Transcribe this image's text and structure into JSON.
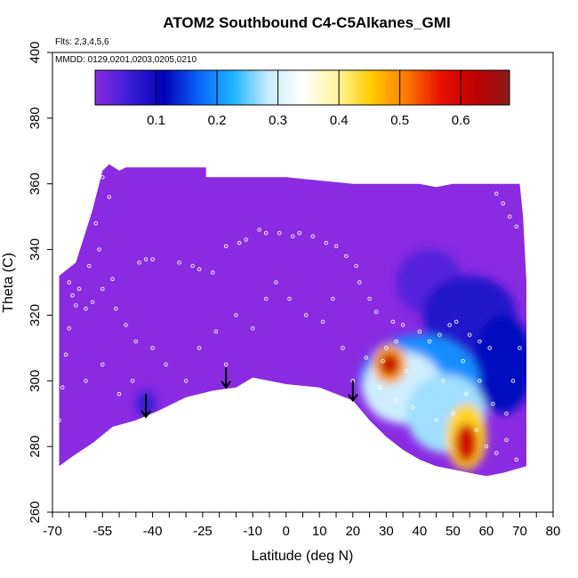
{
  "chart_data": {
    "type": "heatmap",
    "title": "ATOM2 Southbound C4-C5Alkanes_GMI",
    "subtitle_flights": "Flts: 2,3,4,5,6",
    "subtitle_dates": "MMDD: 0129,0201,0203,0205,0210",
    "xlabel": "Latitude (deg N)",
    "ylabel": "Theta (C)",
    "xlim": [
      -70,
      80
    ],
    "ylim": [
      260,
      400
    ],
    "x_ticks": [
      -70,
      -55,
      -40,
      -25,
      -10,
      0,
      10,
      20,
      30,
      40,
      50,
      60,
      70,
      80
    ],
    "x_minor_ticks": [
      -65,
      -60,
      -50,
      -45,
      -35,
      -30,
      -20,
      -15,
      -5,
      5,
      15,
      25,
      35,
      45,
      55,
      65,
      75
    ],
    "x_tick_labels": [
      "-70",
      "-55",
      "-40",
      "-25",
      "-10",
      "0",
      "10",
      "20",
      "30",
      "40",
      "50",
      "60",
      "70",
      "80"
    ],
    "y_ticks": [
      260,
      280,
      300,
      320,
      340,
      360,
      380,
      400
    ],
    "y_tick_labels": [
      "260",
      "280",
      "300",
      "320",
      "340",
      "360",
      "380",
      "400"
    ],
    "colorbar": {
      "min": 0.0,
      "max": 0.68,
      "ticks": [
        0.1,
        0.2,
        0.3,
        0.4,
        0.5,
        0.6
      ],
      "tick_labels": [
        "0.1",
        "0.2",
        "0.3",
        "0.4",
        "0.5",
        "0.6"
      ],
      "colors": [
        "#8a2be2",
        "#3b1fd6",
        "#0000b8",
        "#0a64ff",
        "#1eb4ff",
        "#c8ecff",
        "#ffffff",
        "#fff6a0",
        "#ffcc00",
        "#ff7a00",
        "#e81000",
        "#c00000",
        "#8b1a1a"
      ]
    },
    "domain_outline": {
      "top": [
        [
          -68,
          332
        ],
        [
          -63,
          336
        ],
        [
          -58,
          352
        ],
        [
          -55,
          364
        ],
        [
          -53,
          366
        ],
        [
          -50,
          364
        ],
        [
          -48,
          365
        ],
        [
          -30,
          365
        ],
        [
          -24,
          365
        ],
        [
          -24,
          362
        ],
        [
          -10,
          362
        ],
        [
          0,
          362
        ],
        [
          10,
          361
        ],
        [
          20,
          360
        ],
        [
          30,
          360
        ],
        [
          40,
          360
        ],
        [
          45,
          359
        ],
        [
          50,
          360
        ],
        [
          60,
          360
        ],
        [
          70,
          360
        ],
        [
          71,
          350
        ],
        [
          72,
          330
        ],
        [
          72,
          310
        ],
        [
          72,
          300
        ],
        [
          72,
          290
        ],
        [
          72,
          285
        ],
        [
          72,
          274
        ]
      ],
      "bottom": [
        [
          -68,
          274
        ],
        [
          -64,
          277
        ],
        [
          -58,
          281
        ],
        [
          -52,
          286
        ],
        [
          -45,
          288
        ],
        [
          -38,
          291
        ],
        [
          -30,
          295
        ],
        [
          -22,
          297
        ],
        [
          -15,
          298
        ],
        [
          -10,
          301
        ],
        [
          -5,
          300
        ],
        [
          0,
          299
        ],
        [
          10,
          298
        ],
        [
          20,
          294
        ],
        [
          25,
          288
        ],
        [
          30,
          283
        ],
        [
          35,
          279
        ],
        [
          40,
          276
        ],
        [
          45,
          274
        ],
        [
          50,
          273
        ],
        [
          55,
          272
        ],
        [
          60,
          271
        ],
        [
          65,
          272
        ],
        [
          72,
          274
        ]
      ]
    },
    "features": [
      {
        "shape": "rect",
        "x": [
          -68,
          72
        ],
        "y": [
          260,
          370
        ],
        "value": 0.0
      },
      {
        "shape": "ellipse",
        "x": 43,
        "y": 330,
        "rx": 10,
        "ry": 10,
        "value": 0.04
      },
      {
        "shape": "ellipse",
        "x": 55,
        "y": 320,
        "rx": 14,
        "ry": 12,
        "value": 0.08
      },
      {
        "shape": "ellipse",
        "x": 65,
        "y": 305,
        "rx": 9,
        "ry": 15,
        "value": 0.12
      },
      {
        "shape": "ellipse",
        "x": 40,
        "y": 300,
        "rx": 18,
        "ry": 14,
        "value": 0.2
      },
      {
        "shape": "ellipse",
        "x": 35,
        "y": 298,
        "rx": 12,
        "ry": 11,
        "value": 0.29
      },
      {
        "shape": "ellipse",
        "x": 48,
        "y": 290,
        "rx": 12,
        "ry": 12,
        "value": 0.27
      },
      {
        "shape": "ellipse",
        "x": 31,
        "y": 305,
        "rx": 5,
        "ry": 6,
        "value": 0.48
      },
      {
        "shape": "ellipse",
        "x": 31,
        "y": 305,
        "rx": 3,
        "ry": 3.5,
        "value": 0.62
      },
      {
        "shape": "ellipse",
        "x": 54,
        "y": 283,
        "rx": 6,
        "ry": 10,
        "value": 0.44
      },
      {
        "shape": "ellipse",
        "x": 54,
        "y": 281,
        "rx": 3.5,
        "ry": 6,
        "value": 0.6
      },
      {
        "shape": "ellipse",
        "x": -42,
        "y": 293,
        "rx": 3,
        "ry": 4,
        "value": 0.06
      }
    ],
    "points": [
      [
        -65,
        330
      ],
      [
        -64,
        326
      ],
      [
        -63,
        323
      ],
      [
        -60,
        322
      ],
      [
        -58,
        324
      ],
      [
        -55,
        328
      ],
      [
        -52,
        331
      ],
      [
        -51,
        322
      ],
      [
        -48,
        317
      ],
      [
        -45,
        312
      ],
      [
        -44,
        336
      ],
      [
        -42,
        337
      ],
      [
        -40,
        337
      ],
      [
        -32,
        336
      ],
      [
        -28,
        335
      ],
      [
        -26,
        334
      ],
      [
        -22,
        333
      ],
      [
        -18,
        341
      ],
      [
        -14,
        342
      ],
      [
        -12,
        343
      ],
      [
        -8,
        346
      ],
      [
        -6,
        345
      ],
      [
        -2,
        345
      ],
      [
        2,
        344
      ],
      [
        4,
        345
      ],
      [
        8,
        344
      ],
      [
        12,
        342
      ],
      [
        15,
        341
      ],
      [
        18,
        338
      ],
      [
        21,
        335
      ],
      [
        22,
        330
      ],
      [
        25,
        325
      ],
      [
        27,
        321
      ],
      [
        32,
        318
      ],
      [
        35,
        317
      ],
      [
        40,
        315
      ],
      [
        43,
        312
      ],
      [
        46,
        314
      ],
      [
        49,
        317
      ],
      [
        51,
        318
      ],
      [
        55,
        314
      ],
      [
        58,
        312
      ],
      [
        61,
        310
      ],
      [
        63,
        357
      ],
      [
        65,
        354
      ],
      [
        67,
        350
      ],
      [
        69,
        347
      ],
      [
        -55,
        362
      ],
      [
        -53,
        356
      ],
      [
        -57,
        348
      ],
      [
        -56,
        340
      ],
      [
        -59,
        335
      ],
      [
        -62,
        328
      ],
      [
        -65,
        316
      ],
      [
        -66,
        308
      ],
      [
        -67,
        298
      ],
      [
        -68,
        288
      ],
      [
        -60,
        300
      ],
      [
        -55,
        305
      ],
      [
        -50,
        296
      ],
      [
        -46,
        300
      ],
      [
        -40,
        310
      ],
      [
        -36,
        305
      ],
      [
        -30,
        300
      ],
      [
        -26,
        310
      ],
      [
        -21,
        315
      ],
      [
        -18,
        305
      ],
      [
        -15,
        320
      ],
      [
        -10,
        316
      ],
      [
        -6,
        325
      ],
      [
        -3,
        330
      ],
      [
        1,
        325
      ],
      [
        6,
        320
      ],
      [
        11,
        318
      ],
      [
        14,
        325
      ],
      [
        17,
        310
      ],
      [
        20,
        300
      ],
      [
        24,
        307
      ],
      [
        28,
        298
      ],
      [
        33,
        294
      ],
      [
        38,
        292
      ],
      [
        45,
        288
      ],
      [
        50,
        290
      ],
      [
        54,
        296
      ],
      [
        57,
        285
      ],
      [
        60,
        280
      ],
      [
        63,
        278
      ],
      [
        66,
        290
      ],
      [
        68,
        300
      ],
      [
        70,
        310
      ],
      [
        36,
        303
      ],
      [
        30,
        310
      ],
      [
        29,
        306
      ],
      [
        33,
        312
      ],
      [
        47,
        300
      ],
      [
        53,
        306
      ],
      [
        58,
        300
      ],
      [
        62,
        293
      ],
      [
        66,
        282
      ],
      [
        69,
        276
      ]
    ],
    "arrows": [
      {
        "x": -42,
        "y_start": 296,
        "y_end": 289
      },
      {
        "x": -18,
        "y_start": 304,
        "y_end": 298
      },
      {
        "x": 20,
        "y_start": 300,
        "y_end": 294
      }
    ]
  }
}
